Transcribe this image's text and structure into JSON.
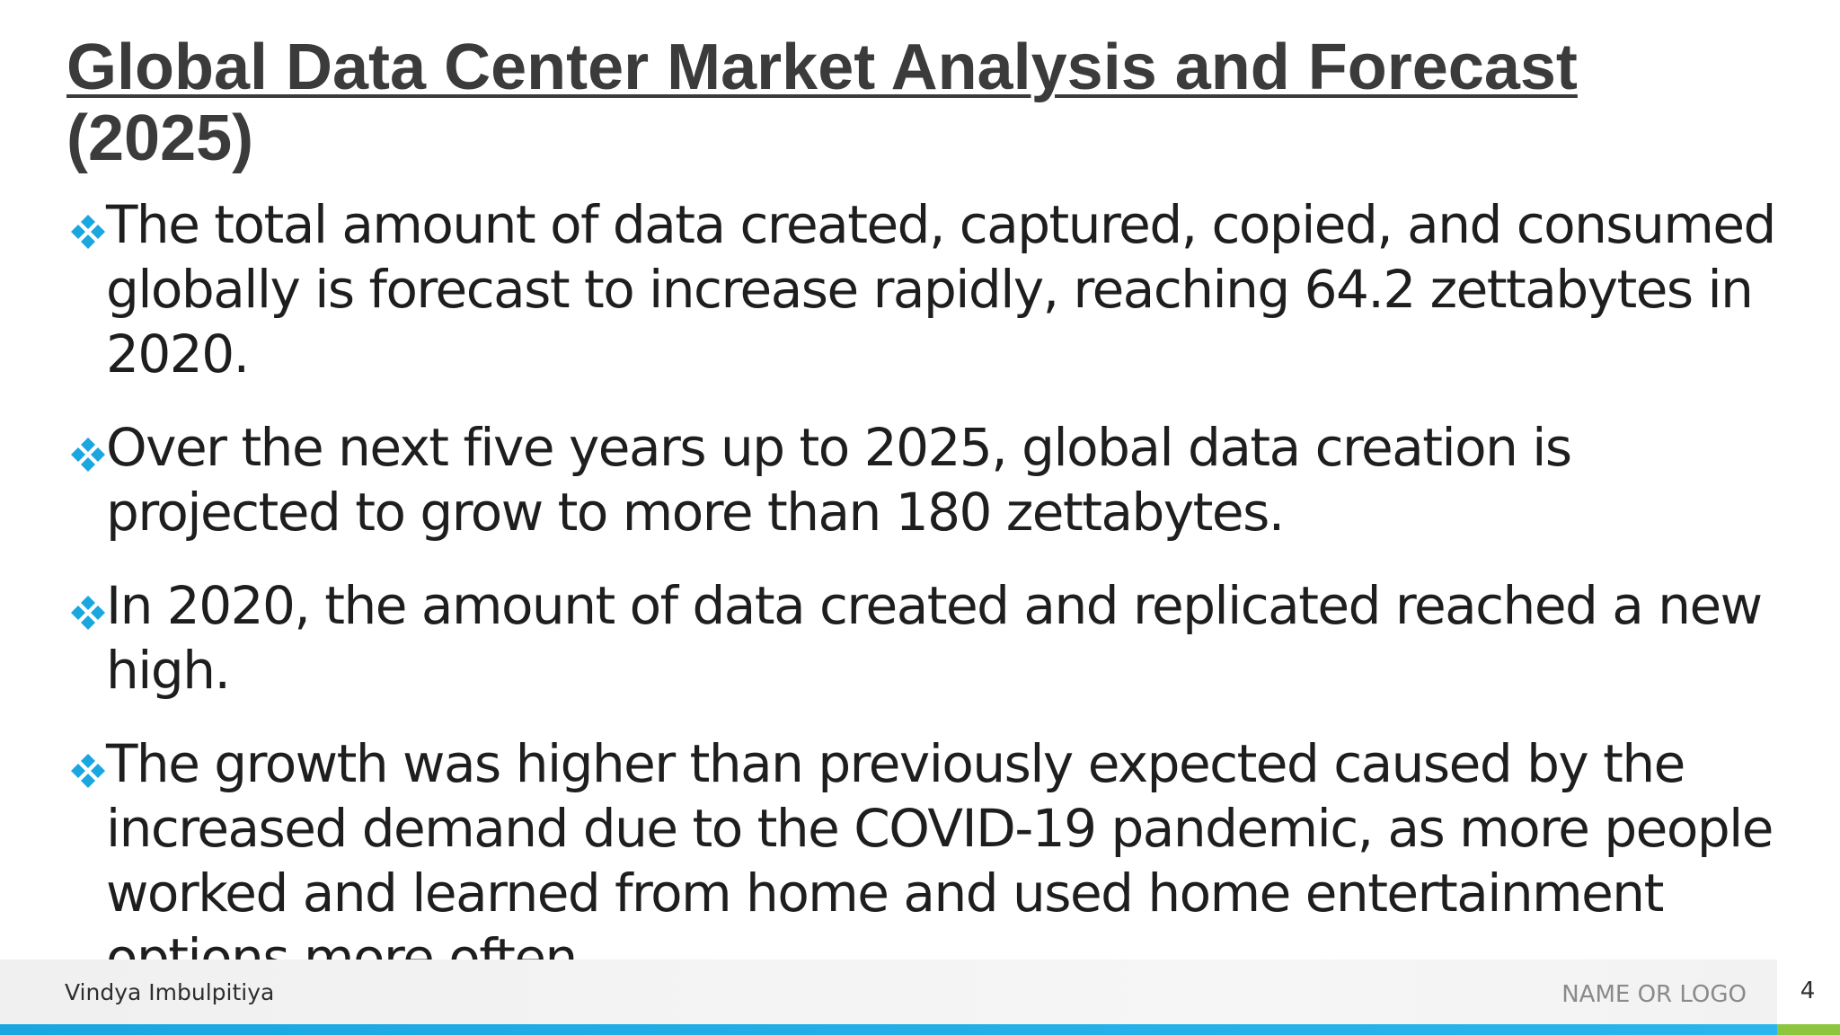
{
  "slide": {
    "title_line1": "Global Data Center Market Analysis and Forecast ",
    "title_line2": "(2025)",
    "bullets": [
      {
        "text": "The total amount of data created, captured, copied, and consumed globally is forecast to increase rapidly, reaching 64.2 zettabytes in 2020."
      },
      {
        "text": "Over the next five years up to 2025, global data creation is projected to grow to more than 180 zettabytes."
      },
      {
        "text": "In 2020, the amount of data created and replicated reached a new high."
      },
      {
        "text": "The growth was higher than previously expected caused by the increased demand due to the COVID-19 pandemic, as more people worked and learned from home and used home entertainment options more often."
      }
    ],
    "bullet_icon": "diamond-bullet-icon",
    "accent_color": "#1aa7e0",
    "accent_color_secondary": "#8cc63f"
  },
  "footer": {
    "author": "Vindya Imbulpitiya",
    "logo_placeholder": "NAME OR LOGO",
    "page_number": "4"
  }
}
